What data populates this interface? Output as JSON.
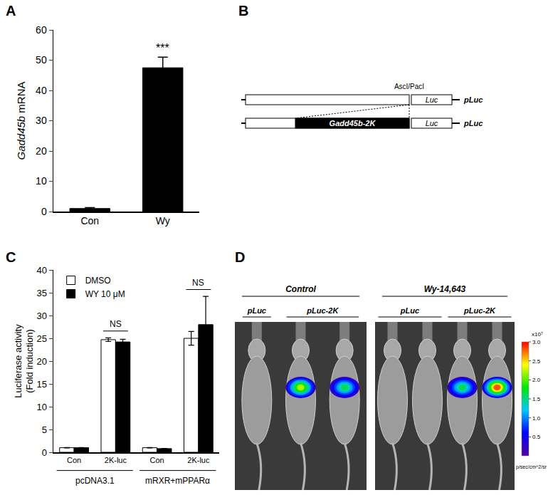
{
  "panel_labels": [
    "A",
    "B",
    "C",
    "D"
  ],
  "chart_data": [
    {
      "type": "bar",
      "y_label": "Gadd45b mRNA",
      "categories": [
        "Con",
        "Wy"
      ],
      "values": [
        1,
        47.5
      ],
      "errors": [
        0.3,
        3.5
      ],
      "color": "#000000",
      "ylim": [
        0,
        60
      ],
      "yticks": [
        0,
        10,
        20,
        30,
        40,
        50,
        60
      ],
      "annotations": [
        {
          "category": "Wy",
          "text": "***"
        }
      ]
    },
    {
      "type": "bar",
      "y_label": [
        "Luciferase activity",
        "(Fold induction)"
      ],
      "categories": [
        "Con",
        "2K-luc",
        "Con",
        "2K-luc"
      ],
      "groups": [
        {
          "label": "pcDNA3.1",
          "span": [
            0,
            1
          ]
        },
        {
          "label": "mRXR+mPPARα",
          "span": [
            2,
            3
          ]
        }
      ],
      "series": [
        {
          "name": "DMSO",
          "color": "#ffffff",
          "values": [
            1,
            24.7,
            1,
            25
          ],
          "errors": [
            0.05,
            0.4,
            0.05,
            1.5
          ]
        },
        {
          "name": "WY 10 μM",
          "color": "#000000",
          "values": [
            1,
            24.2,
            0.8,
            28
          ],
          "errors": [
            0.05,
            0.6,
            0.05,
            6.2
          ]
        }
      ],
      "ylim": [
        0,
        40
      ],
      "yticks": [
        0,
        5,
        10,
        15,
        20,
        25,
        30,
        35,
        40
      ],
      "legend": "top left",
      "annotations": [
        {
          "category_index": 1,
          "text": "NS"
        },
        {
          "category_index": 3,
          "text": "NS"
        }
      ]
    }
  ],
  "diagram": {
    "site_label": "AscI/PacI",
    "rows": [
      {
        "reporter": "Luc",
        "plasmid": "pLuc"
      },
      {
        "insert": "Gadd45b-2K",
        "reporter": "Luc",
        "plasmid": "pLuc"
      }
    ]
  },
  "image": {
    "groups": [
      {
        "label": "Control",
        "columns": [
          "pLuc",
          "pLuc-2K"
        ],
        "mice": [
          {
            "column": 0,
            "signal": 0
          },
          {
            "column": 1,
            "signal": 2.2
          },
          {
            "column": 1,
            "signal": 1.6
          }
        ]
      },
      {
        "label": "Wy-14,643",
        "columns": [
          "pLuc",
          "pLuc-2K"
        ],
        "mice": [
          {
            "column": 0,
            "signal": 0
          },
          {
            "column": 0,
            "signal": 0
          },
          {
            "column": 1,
            "signal": 1.6
          },
          {
            "column": 1,
            "signal": 2.8
          }
        ]
      }
    ],
    "colorbar": {
      "range": [
        0,
        3
      ],
      "ticks": [
        {
          "value": 0.5,
          "label": "0.5"
        },
        {
          "value": 1,
          "label": "1.0"
        },
        {
          "value": 1.5,
          "label": "1.5"
        },
        {
          "value": 2,
          "label": "2.0"
        },
        {
          "value": 2.5,
          "label": "2.5"
        },
        {
          "value": 3,
          "label": "3.0"
        }
      ],
      "scale_label": "x10⁷",
      "unit": "p/sec/cm^2/sr"
    }
  }
}
